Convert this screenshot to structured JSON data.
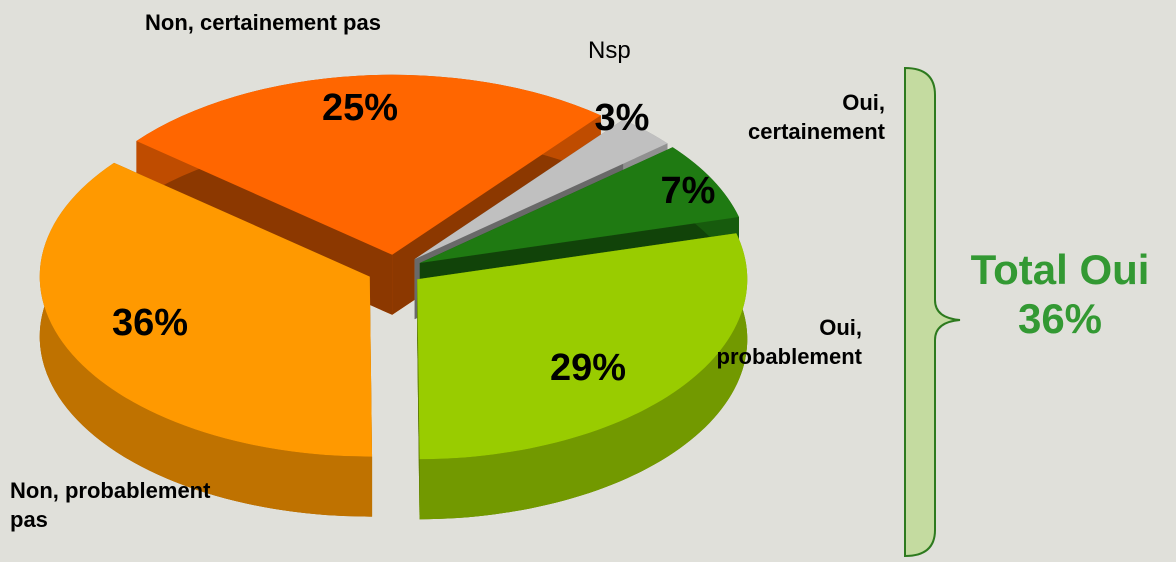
{
  "chart_data": {
    "type": "pie3d",
    "categories": [
      "Oui, certainement",
      "Oui, probablement",
      "Non, probablement pas",
      "Non, certainement pas",
      "Nsp"
    ],
    "values": [
      7,
      29,
      36,
      25,
      3
    ],
    "value_labels": [
      "7%",
      "29%",
      "36%",
      "25%",
      "3%"
    ],
    "colors": [
      "#1f7a12",
      "#99cc00",
      "#ff9900",
      "#ff6600",
      "#c0c0c0"
    ],
    "annotation": [
      "Total Oui",
      "36%"
    ]
  }
}
